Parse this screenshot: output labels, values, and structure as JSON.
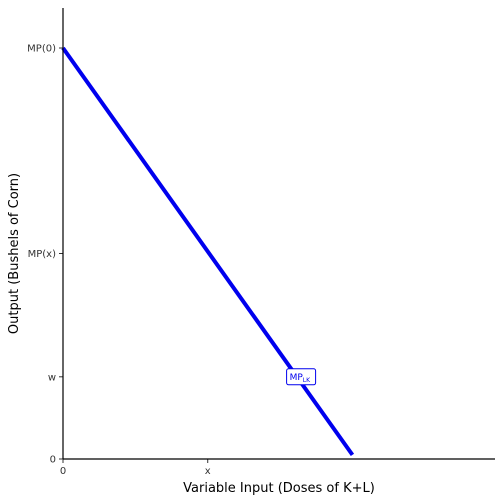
{
  "chart_data": {
    "type": "line",
    "title": "",
    "xlabel": "Variable Input (Doses of K+L)",
    "ylabel": "Output (Bushels of Corn)",
    "xlim": [
      0,
      10
    ],
    "ylim": [
      0,
      10
    ],
    "x_ticks": [
      {
        "value": 0,
        "label": "0"
      },
      {
        "value": 3.35,
        "label": "x"
      }
    ],
    "y_ticks": [
      {
        "value": 0,
        "label": "0"
      },
      {
        "value": 2,
        "label": "w"
      },
      {
        "value": 5,
        "label": "MP(x)"
      },
      {
        "value": 10,
        "label": "MP(0)"
      }
    ],
    "series": [
      {
        "name": "MP",
        "name_subscript": "LK",
        "color": "#0000ee",
        "x": [
          0,
          6.7
        ],
        "y": [
          10,
          0.1
        ]
      }
    ],
    "series_label_at": {
      "x": 5.5,
      "y": 2
    },
    "grid": false,
    "legend": "none"
  }
}
